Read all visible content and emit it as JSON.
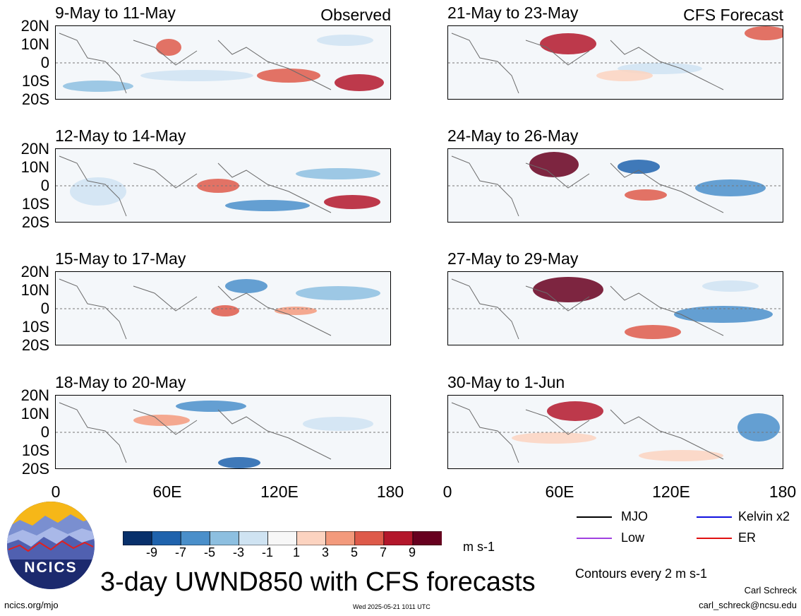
{
  "observed_label": "Observed",
  "forecast_label": "CFS Forecast",
  "lat_labels": [
    "20N",
    "10N",
    "0",
    "10S",
    "20S"
  ],
  "lon_labels": [
    "0",
    "60E",
    "120E",
    "180"
  ],
  "panels": {
    "p1": {
      "title": "9-May to 11-May"
    },
    "p2": {
      "title": "12-May to 14-May"
    },
    "p3": {
      "title": "15-May to 17-May"
    },
    "p4": {
      "title": "18-May to 20-May"
    },
    "p5": {
      "title": "21-May to 23-May"
    },
    "p6": {
      "title": "24-May to 26-May"
    },
    "p7": {
      "title": "27-May to 29-May"
    },
    "p8": {
      "title": "30-May to 1-Jun"
    }
  },
  "colorbar": {
    "labels": [
      "-9",
      "-7",
      "-5",
      "-3",
      "-1",
      "1",
      "3",
      "5",
      "7",
      "9"
    ],
    "colors": [
      "#08306b",
      "#1f63ad",
      "#4a8fca",
      "#8dbfe0",
      "#cfe3f2",
      "#f7f7f7",
      "#fcd3c0",
      "#f39a7c",
      "#de5a4a",
      "#b3172b",
      "#67001f"
    ],
    "units": "m s-1"
  },
  "title": "3-day UWND850 with CFS forecasts",
  "logo_text": "NCICS",
  "legend": [
    {
      "label": "MJO",
      "color": "#000000"
    },
    {
      "label": "Kelvin x2",
      "color": "#1010e0"
    },
    {
      "label": "Low",
      "color": "#a040e0"
    },
    {
      "label": "ER",
      "color": "#e01010"
    }
  ],
  "contour_note": "Contours every 2 m s-1",
  "author": "Carl Schreck",
  "email": "carl_schreck@ncsu.edu",
  "website": "ncics.org/mjo",
  "timestamp": "Wed 2025-05-21 1011 UTC"
}
